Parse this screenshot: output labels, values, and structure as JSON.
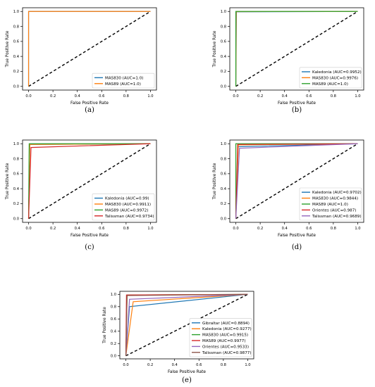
{
  "chart_data": [
    {
      "type": "line",
      "panel_label": "(a)",
      "xlabel": "False Positive Rate",
      "ylabel": "True Positive Rate",
      "xlim": [
        0,
        1
      ],
      "ylim": [
        0,
        1
      ],
      "xticks": [
        "0.0",
        "0.2",
        "0.4",
        "0.6",
        "0.8",
        "1.0"
      ],
      "yticks": [
        "0.0",
        "0.2",
        "0.4",
        "0.6",
        "0.8",
        "1.0"
      ],
      "legend_position": "lower-right",
      "baseline": {
        "style": "dashed",
        "color": "#000000",
        "x": [
          0,
          1
        ],
        "y": [
          0,
          1
        ]
      },
      "series": [
        {
          "name": "MAS830 (AUC=1.0)",
          "color": "#1f77b4",
          "x": [
            0,
            0,
            1
          ],
          "y": [
            0,
            1,
            1
          ]
        },
        {
          "name": "MAS89 (AUC=1.0)",
          "color": "#ff7f0e",
          "x": [
            0,
            0,
            1
          ],
          "y": [
            0,
            1,
            1
          ]
        }
      ]
    },
    {
      "type": "line",
      "panel_label": "(b)",
      "xlabel": "False Positive Rate",
      "ylabel": "True Positive Rate",
      "xlim": [
        0,
        1
      ],
      "ylim": [
        0,
        1
      ],
      "xticks": [
        "0.0",
        "0.2",
        "0.4",
        "0.6",
        "0.8",
        "1.0"
      ],
      "yticks": [
        "0.0",
        "0.2",
        "0.4",
        "0.6",
        "0.8",
        "1.0"
      ],
      "legend_position": "lower-right",
      "baseline": {
        "style": "dashed",
        "color": "#000000",
        "x": [
          0,
          1
        ],
        "y": [
          0,
          1
        ]
      },
      "series": [
        {
          "name": "Kaledonia (AUC=0.9952)",
          "color": "#1f77b4",
          "x": [
            0,
            0.005,
            1
          ],
          "y": [
            0,
            0.995,
            1
          ]
        },
        {
          "name": "MAS830 (AUC=0.9976)",
          "color": "#ff7f0e",
          "x": [
            0,
            0.003,
            1
          ],
          "y": [
            0,
            0.998,
            1
          ]
        },
        {
          "name": "MAS89 (AUC=1.0)",
          "color": "#2ca02c",
          "x": [
            0,
            0,
            1
          ],
          "y": [
            0,
            1,
            1
          ]
        }
      ]
    },
    {
      "type": "line",
      "panel_label": "(c)",
      "xlabel": "False Positive Rate",
      "ylabel": "True Positive Rate",
      "xlim": [
        0,
        1
      ],
      "ylim": [
        0,
        1
      ],
      "xticks": [
        "0.0",
        "0.2",
        "0.4",
        "0.6",
        "0.8",
        "1.0"
      ],
      "yticks": [
        "0.0",
        "0.2",
        "0.4",
        "0.6",
        "0.8",
        "1.0"
      ],
      "legend_position": "lower-right",
      "baseline": {
        "style": "dashed",
        "color": "#000000",
        "x": [
          0,
          1
        ],
        "y": [
          0,
          1
        ]
      },
      "series": [
        {
          "name": "Kaledonia (AUC=0.99)",
          "color": "#1f77b4",
          "x": [
            0,
            0.01,
            1
          ],
          "y": [
            0,
            0.99,
            1
          ]
        },
        {
          "name": "MAS830 (AUC=0.9911)",
          "color": "#ff7f0e",
          "x": [
            0,
            0.01,
            1
          ],
          "y": [
            0,
            0.99,
            1
          ]
        },
        {
          "name": "MAS89 (AUC=0.9972)",
          "color": "#2ca02c",
          "x": [
            0,
            0.005,
            1
          ],
          "y": [
            0,
            1.0,
            1
          ]
        },
        {
          "name": "Talissman (AUC=0.9734)",
          "color": "#d62728",
          "x": [
            0,
            0.02,
            1
          ],
          "y": [
            0,
            0.95,
            1
          ]
        }
      ]
    },
    {
      "type": "line",
      "panel_label": "(d)",
      "xlabel": "False Positive Rate",
      "ylabel": "True Positive Rate",
      "xlim": [
        0,
        1
      ],
      "ylim": [
        0,
        1
      ],
      "xticks": [
        "0.0",
        "0.2",
        "0.4",
        "0.6",
        "0.8",
        "1.0"
      ],
      "yticks": [
        "0.0",
        "0.2",
        "0.4",
        "0.6",
        "0.8",
        "1.0"
      ],
      "legend_position": "lower-right",
      "baseline": {
        "style": "dashed",
        "color": "#000000",
        "x": [
          0,
          1
        ],
        "y": [
          0,
          1
        ]
      },
      "series": [
        {
          "name": "Kaledonia (AUC=0.9702)",
          "color": "#1f77b4",
          "x": [
            0,
            0.02,
            1
          ],
          "y": [
            0,
            0.96,
            1
          ]
        },
        {
          "name": "MAS830 (AUC=0.9844)",
          "color": "#ff7f0e",
          "x": [
            0,
            0.02,
            1
          ],
          "y": [
            0,
            0.985,
            1
          ]
        },
        {
          "name": "MAS89 (AUC=1.0)",
          "color": "#2ca02c",
          "x": [
            0,
            0,
            1
          ],
          "y": [
            0,
            1,
            1
          ]
        },
        {
          "name": "Orientes (AUC=0.987)",
          "color": "#d62728",
          "x": [
            0,
            0.015,
            1
          ],
          "y": [
            0,
            0.99,
            1
          ]
        },
        {
          "name": "Talissman (AUC=0.9689)",
          "color": "#9467bd",
          "x": [
            0,
            0.03,
            1
          ],
          "y": [
            0,
            0.94,
            1
          ]
        }
      ]
    },
    {
      "type": "line",
      "panel_label": "(e)",
      "xlabel": "False Positive Rate",
      "ylabel": "True Positive Rate",
      "xlim": [
        0,
        1
      ],
      "ylim": [
        0,
        1
      ],
      "xticks": [
        "0.0",
        "0.2",
        "0.4",
        "0.6",
        "0.8",
        "1.0"
      ],
      "yticks": [
        "0.0",
        "0.2",
        "0.4",
        "0.6",
        "0.8",
        "1.0"
      ],
      "legend_position": "lower-right",
      "baseline": {
        "style": "dashed",
        "color": "#000000",
        "x": [
          0,
          1
        ],
        "y": [
          0,
          1
        ]
      },
      "series": [
        {
          "name": "Gibraltar (AUC=0.8894)",
          "color": "#1f77b4",
          "x": [
            0,
            0.03,
            1
          ],
          "y": [
            0,
            0.8,
            1
          ]
        },
        {
          "name": "Kaledonia (AUC=0.9277)",
          "color": "#ff7f0e",
          "x": [
            0,
            0.06,
            1
          ],
          "y": [
            0,
            0.88,
            1
          ]
        },
        {
          "name": "MAS830 (AUC=0.9915)",
          "color": "#2ca02c",
          "x": [
            0,
            0.01,
            1
          ],
          "y": [
            0,
            0.99,
            1
          ]
        },
        {
          "name": "MAS89 (AUC=0.9977)",
          "color": "#d62728",
          "x": [
            0,
            0.005,
            1
          ],
          "y": [
            0,
            0.99,
            1
          ]
        },
        {
          "name": "Orientes (AUC=0.9533)",
          "color": "#9467bd",
          "x": [
            0,
            0.03,
            1
          ],
          "y": [
            0,
            0.92,
            1
          ]
        },
        {
          "name": "Talissman (AUC=0.9877)",
          "color": "#8c564b",
          "x": [
            0,
            0.01,
            1
          ],
          "y": [
            0,
            0.98,
            1
          ]
        }
      ]
    }
  ]
}
